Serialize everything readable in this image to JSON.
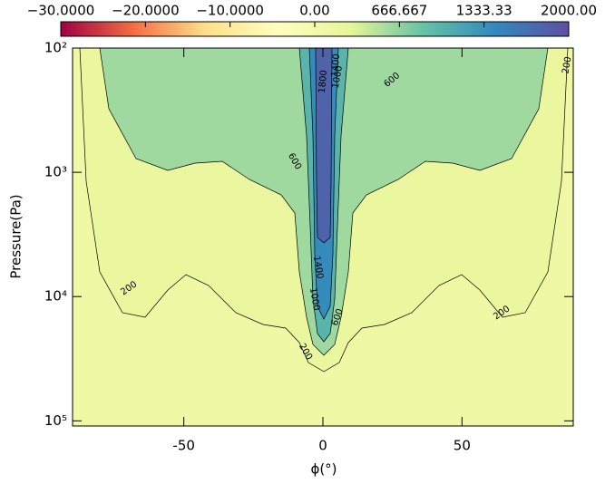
{
  "chart_data": {
    "type": "contour",
    "x_label": "ϕ(°)",
    "y_label": "Pressure(Pa)",
    "xlim": [
      -90,
      90
    ],
    "xticks": [
      -50,
      0,
      50
    ],
    "ylim": [
      100,
      110000
    ],
    "y_log": true,
    "yticks": [
      {
        "value": 100,
        "label": "10²"
      },
      {
        "value": 1000,
        "label": "10³"
      },
      {
        "value": 10000,
        "label": "10⁴"
      },
      {
        "value": 100000,
        "label": "10⁵"
      }
    ],
    "clim": [
      -30,
      2000
    ],
    "cticks": [
      {
        "value": -30,
        "label": "−30.0000"
      },
      {
        "value": -20,
        "label": "−20.0000"
      },
      {
        "value": -10,
        "label": "−10.0000"
      },
      {
        "value": 0,
        "label": "0.00"
      },
      666.667,
      1333.33,
      {
        "value": 2000,
        "label": "2000.00"
      }
    ],
    "colormap": [
      "#9e0142",
      "#f46d43",
      "#fee08b",
      "#ffffbf",
      "#e6f598",
      "#66c2a5",
      "#3288bd",
      "#5e4fa2"
    ],
    "contour_levels": [
      200,
      600,
      1000,
      1400,
      1800
    ]
  }
}
